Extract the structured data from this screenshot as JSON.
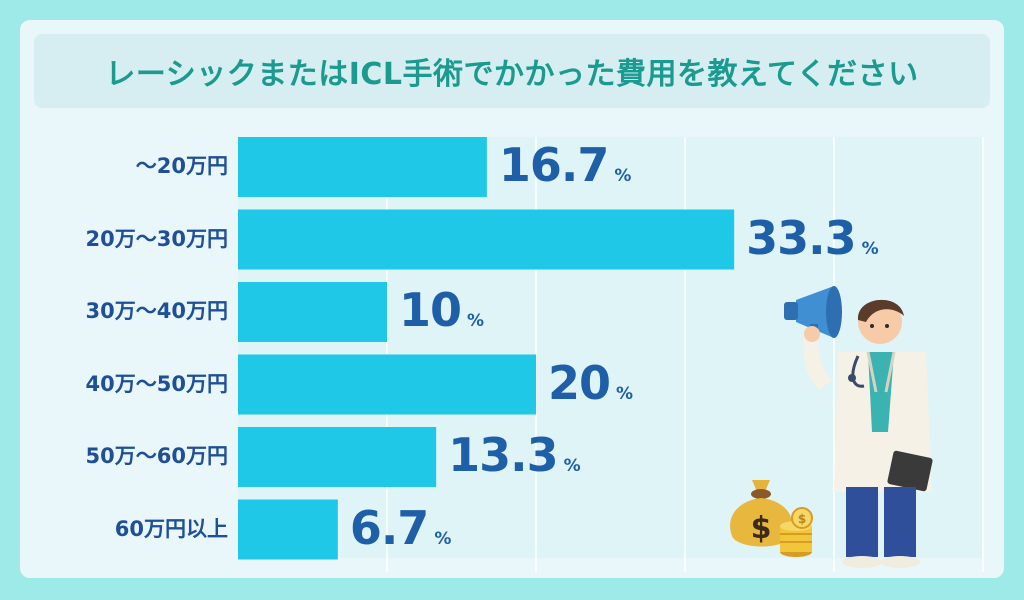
{
  "title": "レーシックまたはICL手術でかかった費用を教えてください",
  "colors": {
    "bar": "#1ec8e6",
    "value_text": "#1f5fa8",
    "category_text": "#1f4f97",
    "title_text": "#1b9a8f"
  },
  "unit": "%",
  "chart_data": {
    "type": "bar",
    "orientation": "horizontal",
    "title": "レーシックまたはICL手術でかかった費用を教えてください",
    "categories": [
      "～20万円",
      "20万～30万円",
      "30万～40万円",
      "40万～50万円",
      "50万～60万円",
      "60万円以上"
    ],
    "values": [
      16.7,
      33.3,
      10,
      20,
      13.3,
      6.7
    ],
    "value_labels": [
      "16.7",
      "33.3",
      "10",
      "20",
      "13.3",
      "6.7"
    ],
    "xlim": [
      0,
      50
    ],
    "grid": true,
    "legend": "none"
  },
  "illustration": {
    "doctor": "doctor-with-megaphone",
    "money": "money-bag-and-coins"
  }
}
